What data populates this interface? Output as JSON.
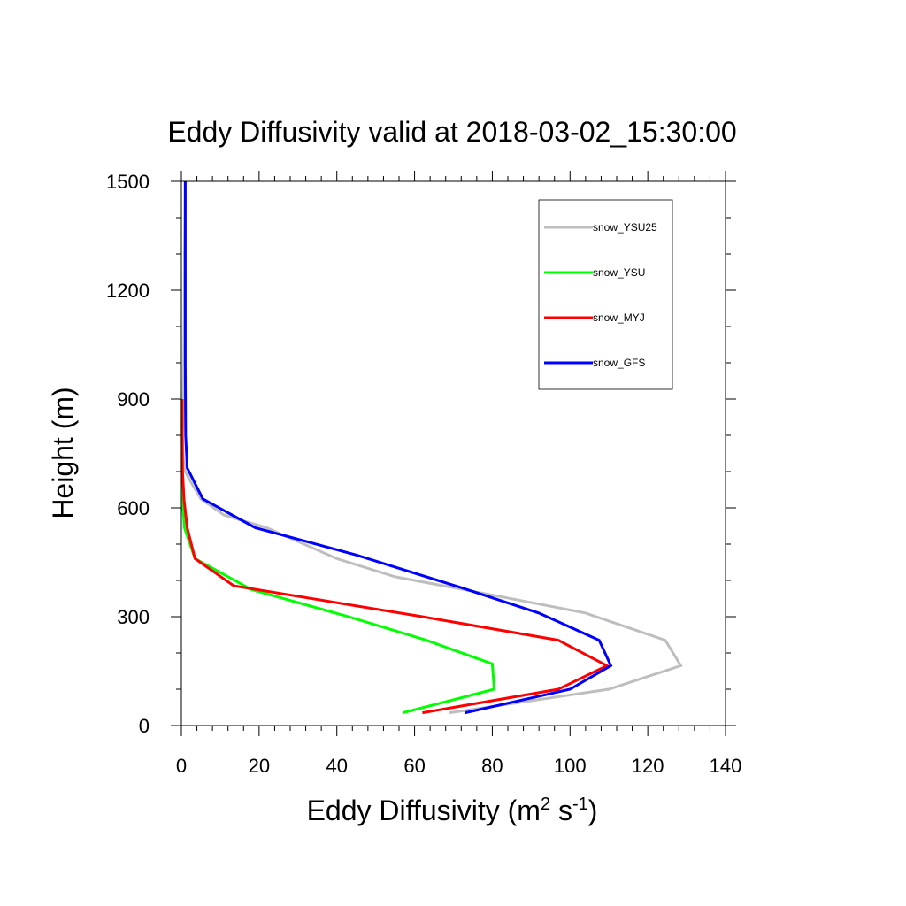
{
  "chart_data": {
    "type": "line",
    "title": "Eddy Diffusivity valid at 2018-03-02_15:30:00",
    "xlabel": {
      "base": "Eddy Diffusivity (m",
      "sup1": "2",
      "mid": " s",
      "sup2": "-1",
      "end": ")"
    },
    "ylabel": "Height (m)",
    "xlim": [
      0,
      140
    ],
    "ylim": [
      0,
      1500
    ],
    "xticks": [
      0,
      20,
      40,
      60,
      80,
      100,
      120,
      140
    ],
    "yticks": [
      0,
      300,
      600,
      900,
      1200,
      1500
    ],
    "legend_placement": "upper-right",
    "series": [
      {
        "name": "snow_YSU25",
        "color": "#bebebe",
        "x": [
          69,
          110,
          128.5,
          124.5,
          104,
          75,
          55,
          40,
          22,
          11,
          5,
          2.5,
          1,
          0.5,
          0.3,
          0.5,
          0.7,
          0.8,
          0.9,
          1.0
        ],
        "y": [
          35,
          100,
          165,
          235,
          310,
          370,
          410,
          460,
          545,
          580,
          625,
          670,
          700,
          740,
          800,
          900,
          1100,
          1300,
          1400,
          1500
        ]
      },
      {
        "name": "snow_YSU",
        "color": "#00ff00",
        "x": [
          57,
          80.5,
          80,
          63,
          43,
          18,
          3.5,
          0.8,
          0.3,
          0.2,
          0.2,
          0.2
        ],
        "y": [
          35,
          100,
          170,
          235,
          300,
          375,
          460,
          545,
          620,
          700,
          800,
          900
        ]
      },
      {
        "name": "snow_MYJ",
        "color": "#ff0000",
        "x": [
          62,
          97,
          109.5,
          97,
          62,
          13.5,
          3.5,
          1.5,
          0.7,
          0.3,
          0.2,
          0.2
        ],
        "y": [
          35,
          100,
          165,
          235,
          300,
          385,
          460,
          545,
          620,
          700,
          800,
          900
        ]
      },
      {
        "name": "snow_GFS",
        "color": "#0000ff",
        "x": [
          73,
          100,
          110.5,
          107.5,
          92,
          72,
          45,
          19,
          5.5,
          1.5,
          1.1,
          1.0,
          1.0,
          1.0
        ],
        "y": [
          35,
          100,
          165,
          235,
          310,
          380,
          470,
          545,
          625,
          710,
          800,
          1000,
          1250,
          1500
        ]
      }
    ]
  }
}
